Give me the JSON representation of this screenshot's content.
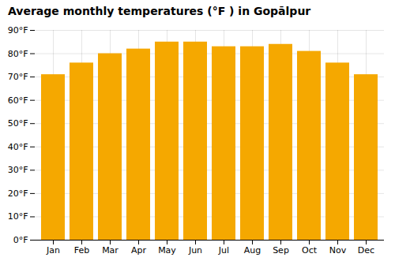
{
  "chart_data": {
    "type": "bar",
    "title": "Average monthly temperatures (°F ) in Gopālpur",
    "categories": [
      "Jan",
      "Feb",
      "Mar",
      "Apr",
      "May",
      "Jun",
      "Jul",
      "Aug",
      "Sep",
      "Oct",
      "Nov",
      "Dec"
    ],
    "values": [
      71,
      76,
      80,
      82,
      85,
      85,
      83,
      83,
      84,
      81,
      76,
      71
    ],
    "color": "#F5A800",
    "ylim": [
      0,
      90
    ],
    "yticks": [
      {
        "value": 0,
        "label": "0°F"
      },
      {
        "value": 10,
        "label": "10°F"
      },
      {
        "value": 20,
        "label": "20°F"
      },
      {
        "value": 30,
        "label": "30°F"
      },
      {
        "value": 40,
        "label": "40°F"
      },
      {
        "value": 50,
        "label": "50°F"
      },
      {
        "value": 60,
        "label": "60°F"
      },
      {
        "value": 70,
        "label": "70°F"
      },
      {
        "value": 80,
        "label": "80°F"
      },
      {
        "value": 90,
        "label": "90°F"
      }
    ],
    "grid": true
  }
}
